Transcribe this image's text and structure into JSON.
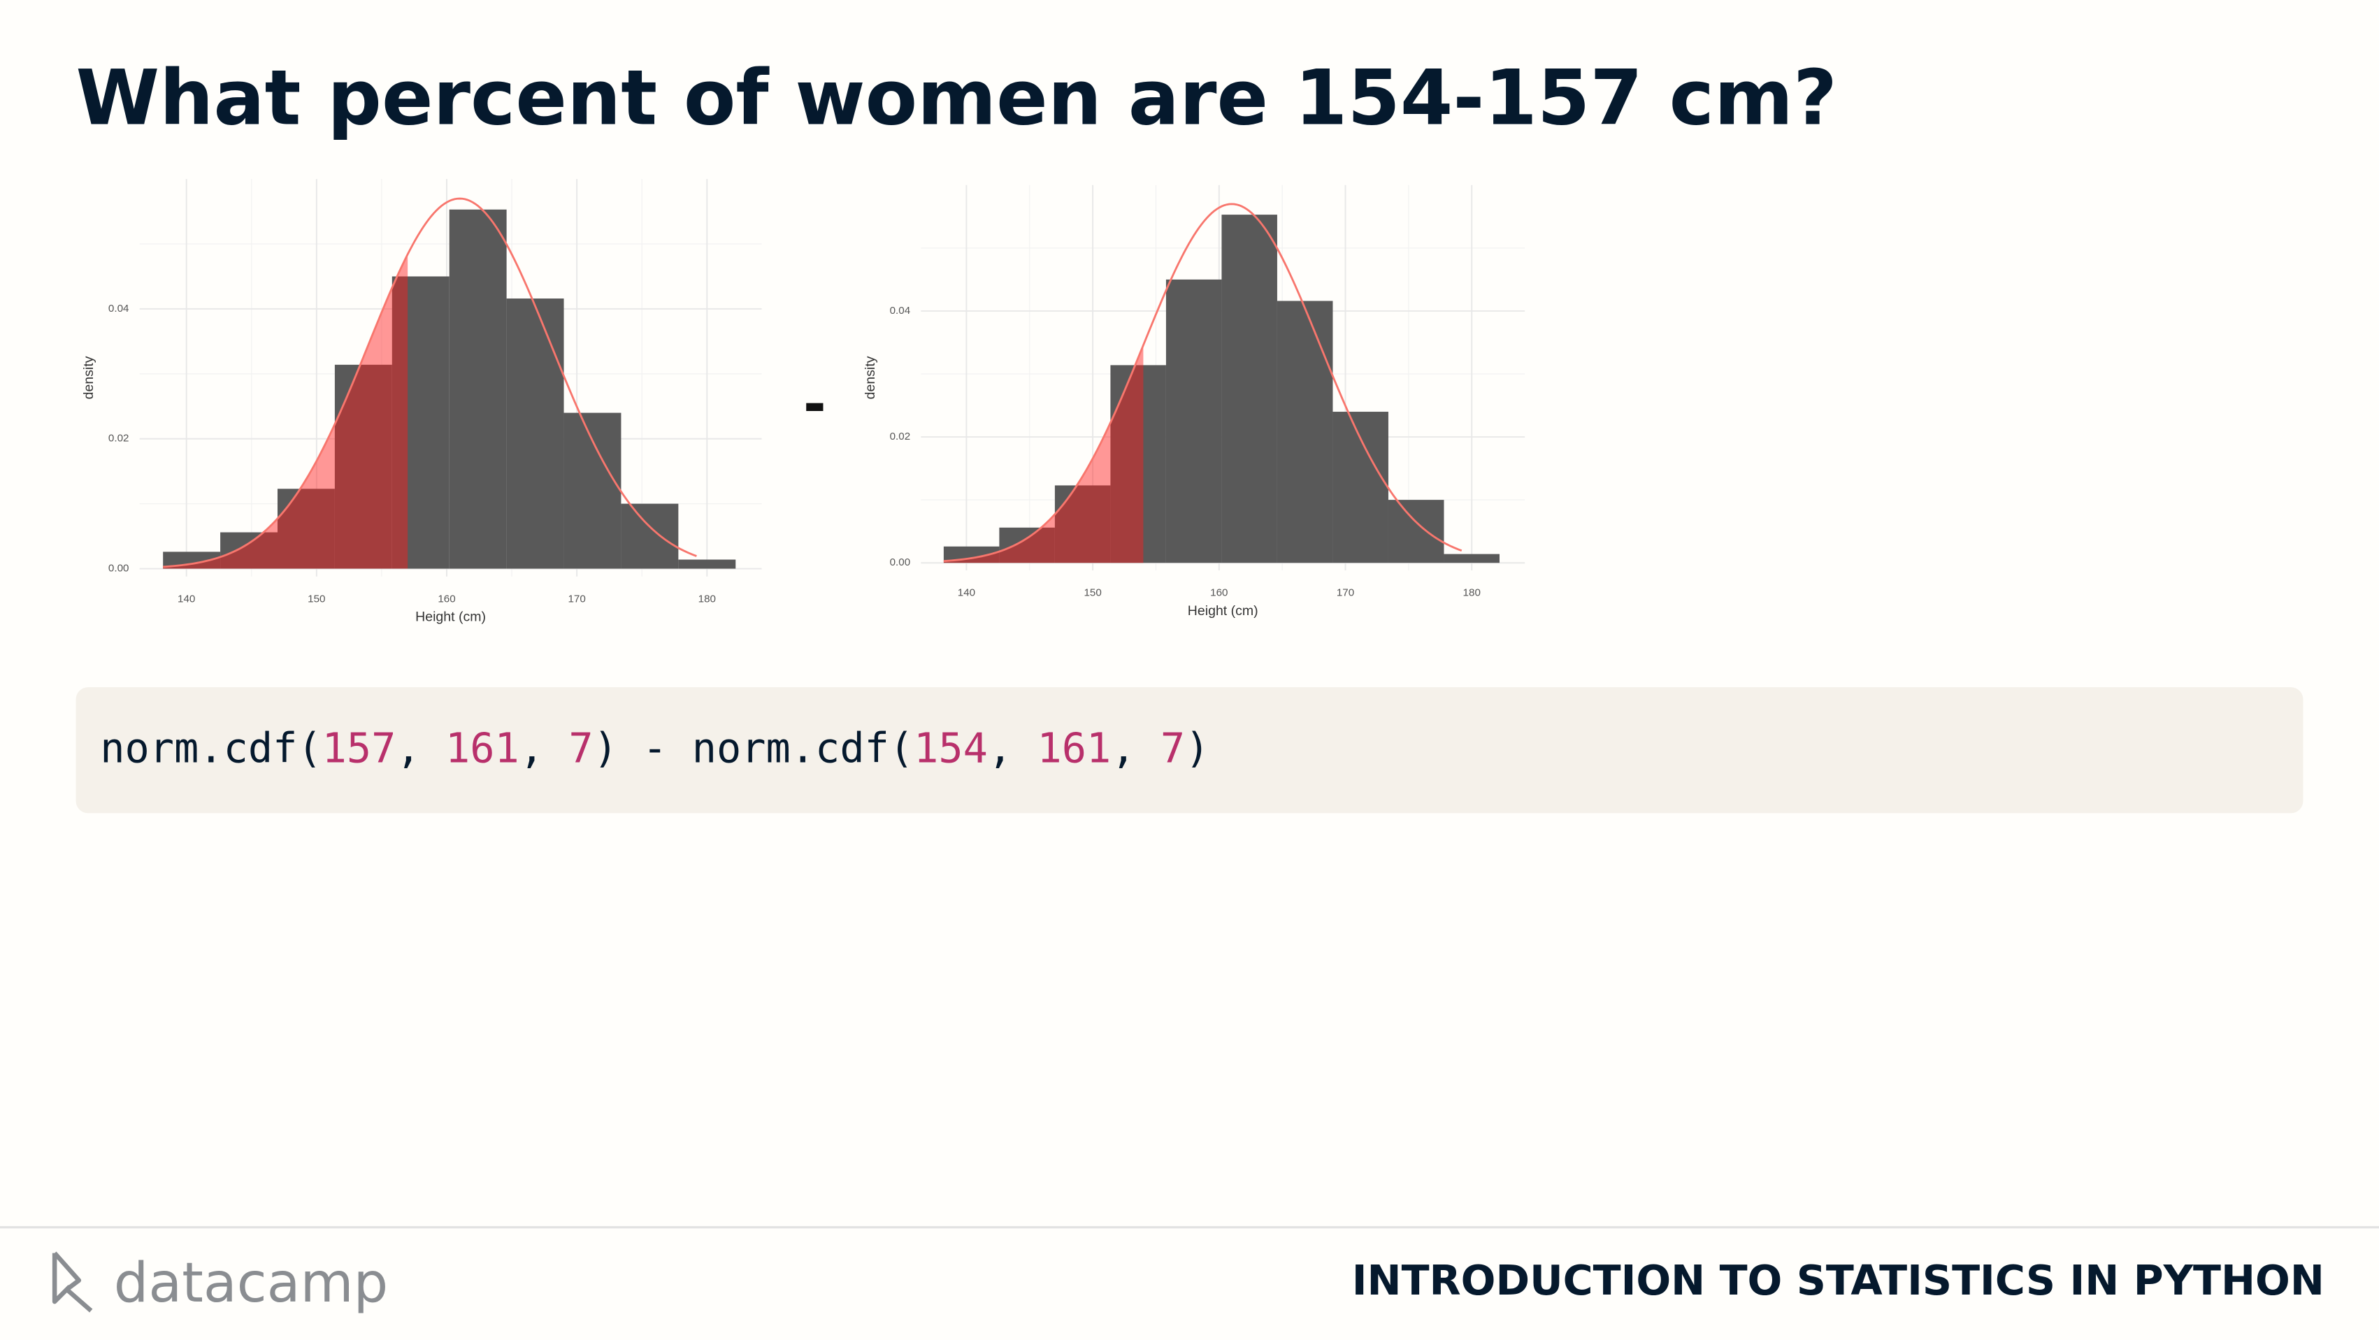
{
  "title": "What percent of women are 154-157 cm?",
  "operator": "-",
  "chart_data": [
    {
      "type": "histogram",
      "bins": [
        138.2,
        142.6,
        147.0,
        151.4,
        155.8,
        160.2,
        164.6,
        169.0,
        173.4,
        177.8,
        182.2
      ],
      "values": [
        0.0026,
        0.0056,
        0.0123,
        0.0314,
        0.045,
        0.0553,
        0.0416,
        0.024,
        0.01,
        0.0014
      ],
      "color": "#595959",
      "curve": {
        "mean": 161,
        "sd": 7,
        "color": "#f8766d"
      },
      "shade_upto": 157,
      "shade_color": "#ff1a1a",
      "x_label": "Height (cm)",
      "y_label": "density",
      "xlim": [
        136.4,
        184.2
      ],
      "ylim": [
        -0.0012,
        0.06
      ],
      "xticks": [
        140,
        150,
        160,
        170,
        180
      ],
      "yticks": [
        {
          "value": 0,
          "label": "0.00"
        },
        {
          "value": 0.02,
          "label": "0.02"
        },
        {
          "value": 0.04,
          "label": "0.04"
        }
      ],
      "xminor": [
        145,
        155,
        165,
        175
      ],
      "yminor": [
        0.01,
        0.03,
        0.05
      ],
      "grid": true
    },
    {
      "type": "histogram",
      "bins": [
        138.2,
        142.6,
        147.0,
        151.4,
        155.8,
        160.2,
        164.6,
        169.0,
        173.4,
        177.8,
        182.2
      ],
      "values": [
        0.0026,
        0.0056,
        0.0123,
        0.0314,
        0.045,
        0.0553,
        0.0416,
        0.024,
        0.01,
        0.0014
      ],
      "color": "#595959",
      "curve": {
        "mean": 161,
        "sd": 7,
        "color": "#f8766d"
      },
      "shade_upto": 154,
      "shade_color": "#ff1a1a",
      "x_label": "Height (cm)",
      "y_label": "density",
      "xlim": [
        136.4,
        184.2
      ],
      "ylim": [
        -0.0012,
        0.06
      ],
      "xticks": [
        140,
        150,
        160,
        170,
        180
      ],
      "yticks": [
        {
          "value": 0,
          "label": "0.00"
        },
        {
          "value": 0.02,
          "label": "0.02"
        },
        {
          "value": 0.04,
          "label": "0.04"
        }
      ],
      "xminor": [
        145,
        155,
        165,
        175
      ],
      "yminor": [
        0.01,
        0.03,
        0.05
      ],
      "grid": true
    }
  ],
  "code": [
    {
      "text": "norm.cdf(",
      "color": "#05192d"
    },
    {
      "text": "157",
      "color": "#b8306b"
    },
    {
      "text": ", ",
      "color": "#05192d"
    },
    {
      "text": "161",
      "color": "#b8306b"
    },
    {
      "text": ", ",
      "color": "#05192d"
    },
    {
      "text": "7",
      "color": "#b8306b"
    },
    {
      "text": ") - norm.cdf(",
      "color": "#05192d"
    },
    {
      "text": "154",
      "color": "#b8306b"
    },
    {
      "text": ", ",
      "color": "#05192d"
    },
    {
      "text": "161",
      "color": "#b8306b"
    },
    {
      "text": ", ",
      "color": "#05192d"
    },
    {
      "text": "7",
      "color": "#b8306b"
    },
    {
      "text": ")",
      "color": "#05192d"
    }
  ],
  "footer": {
    "logo": "datacamp",
    "course": "INTRODUCTION TO STATISTICS IN PYTHON"
  }
}
